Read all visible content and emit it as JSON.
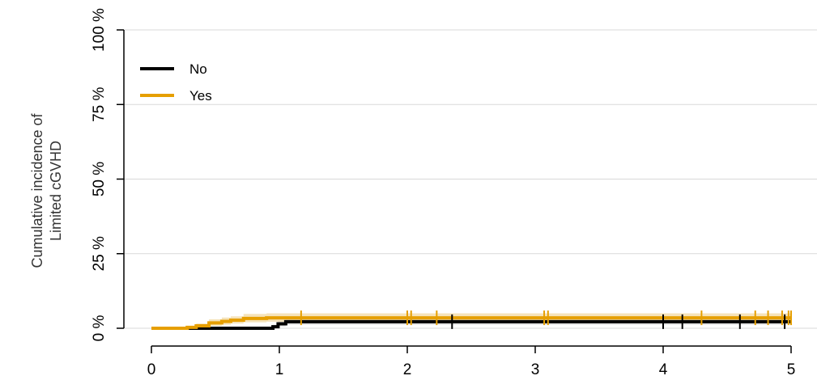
{
  "chart_data": {
    "type": "line",
    "title": "",
    "xlabel": "",
    "ylabel_lines": [
      "Cumulative incidence of",
      "Limited cGVHD"
    ],
    "xlim": [
      0,
      5
    ],
    "ylim": [
      0,
      1
    ],
    "x_ticks": [
      {
        "value": 0,
        "label": "0"
      },
      {
        "value": 1,
        "label": "1"
      },
      {
        "value": 2,
        "label": "2"
      },
      {
        "value": 3,
        "label": "3"
      },
      {
        "value": 4,
        "label": "4"
      },
      {
        "value": 5,
        "label": "5"
      }
    ],
    "y_ticks": [
      {
        "value": 0,
        "label": "0 %"
      },
      {
        "value": 0.25,
        "label": "25 %"
      },
      {
        "value": 0.5,
        "label": "50 %"
      },
      {
        "value": 0.75,
        "label": "75 %"
      },
      {
        "value": 1,
        "label": "100 %"
      }
    ],
    "grid": "horizontal",
    "legend_position": "top-left",
    "series": [
      {
        "name": "No",
        "color": "#000000",
        "band_color": "#d4d4d4",
        "steps": [
          [
            0,
            0
          ],
          [
            0.95,
            0.005
          ],
          [
            0.99,
            0.015
          ],
          [
            1.05,
            0.022
          ],
          [
            5,
            0.022
          ]
        ],
        "band": [
          [
            0,
            0,
            0
          ],
          [
            0.95,
            0.0,
            0.012
          ],
          [
            0.99,
            0.006,
            0.026
          ],
          [
            1.05,
            0.012,
            0.034
          ],
          [
            5,
            0.012,
            0.034
          ]
        ],
        "censor_x": [
          2.35,
          4.0,
          4.15,
          4.6,
          4.95
        ]
      },
      {
        "name": "Yes",
        "color": "#E69F00",
        "band_color": "#f2d9a4",
        "steps": [
          [
            0,
            0
          ],
          [
            0.28,
            0.003
          ],
          [
            0.35,
            0.008
          ],
          [
            0.45,
            0.018
          ],
          [
            0.55,
            0.023
          ],
          [
            0.62,
            0.027
          ],
          [
            0.72,
            0.033
          ],
          [
            0.9,
            0.035
          ],
          [
            1.05,
            0.035
          ],
          [
            5,
            0.035
          ]
        ],
        "band": [
          [
            0,
            0,
            0
          ],
          [
            0.28,
            0.0,
            0.008
          ],
          [
            0.35,
            0.0,
            0.016
          ],
          [
            0.45,
            0.008,
            0.03
          ],
          [
            0.55,
            0.012,
            0.036
          ],
          [
            0.62,
            0.016,
            0.04
          ],
          [
            0.72,
            0.02,
            0.048
          ],
          [
            0.9,
            0.022,
            0.05
          ],
          [
            1.05,
            0.022,
            0.05
          ],
          [
            5,
            0.022,
            0.05
          ]
        ],
        "censor_x": [
          1.17,
          2.0,
          2.03,
          2.23,
          3.07,
          3.1,
          4.3,
          4.72,
          4.82,
          4.93,
          4.98,
          5.0
        ]
      }
    ]
  }
}
